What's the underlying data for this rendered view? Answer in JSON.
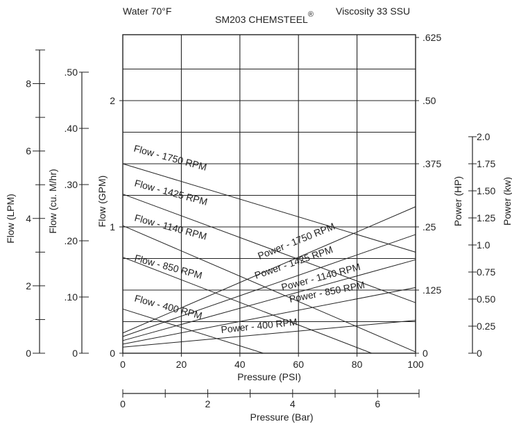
{
  "header": {
    "left": "Water 70°F",
    "center": "SM203 CHEMSTEEL",
    "center_mark": "®",
    "right": "Viscosity 33 SSU"
  },
  "chart_data": {
    "type": "line",
    "grid": true,
    "x": {
      "label": "Pressure (PSI)",
      "range": [
        0,
        100
      ],
      "ticks": [
        0,
        20,
        40,
        60,
        80,
        100
      ],
      "tick_labels": [
        "0",
        "20",
        "40",
        "60",
        "80",
        "100"
      ]
    },
    "x_secondary": {
      "label": "Pressure (Bar)",
      "range": [
        0,
        6.895
      ],
      "ticks": [
        0,
        1,
        2,
        3,
        4,
        5,
        6
      ],
      "tick_labels": [
        "0",
        "",
        "2",
        "",
        "4",
        "",
        "6"
      ]
    },
    "flow_axes": [
      {
        "label": "Flow (GPM)",
        "range": [
          0,
          2.5
        ],
        "ticks": [
          0,
          1,
          2
        ],
        "tick_labels": [
          "0",
          "1",
          "2"
        ]
      },
      {
        "label": "Flow (cu. M/hr)",
        "range": [
          0,
          0.568
        ],
        "ticks": [
          0,
          0.1,
          0.2,
          0.3,
          0.4,
          0.5
        ],
        "tick_labels": [
          "0",
          ".10",
          ".20",
          ".30",
          ".40",
          ".50"
        ]
      },
      {
        "label": "Flow (LPM)",
        "range": [
          0,
          9.46
        ],
        "ticks": [
          0,
          1,
          2,
          3,
          4,
          5,
          6,
          7,
          8,
          9
        ],
        "tick_labels": [
          "0",
          "",
          "2",
          "",
          "4",
          "",
          "6",
          "",
          "8",
          ""
        ]
      }
    ],
    "power_axes": [
      {
        "label": "Power (HP)",
        "range": [
          0,
          0.625
        ],
        "ticks": [
          0,
          0.125,
          0.25,
          0.375,
          0.5,
          0.625
        ],
        "tick_labels": [
          "0",
          ".125",
          ".25",
          ".375",
          ".50",
          ".625"
        ]
      },
      {
        "label": "Power (kw)",
        "range": [
          0,
          2.0
        ],
        "ticks": [
          0,
          0.25,
          0.5,
          0.75,
          1.0,
          1.25,
          1.5,
          1.75,
          2.0
        ],
        "tick_labels": [
          "0",
          "0.25",
          "0.50",
          "0.75",
          "1.0",
          "1.25",
          "1.50",
          "1.75",
          "2.0"
        ]
      }
    ],
    "flow_series": [
      {
        "name": "Flow - 1750 RPM",
        "x": [
          0,
          100
        ],
        "y": [
          1.5,
          0.8
        ]
      },
      {
        "name": "Flow - 1425 RPM",
        "x": [
          0,
          100
        ],
        "y": [
          1.26,
          0.4
        ]
      },
      {
        "name": "Flow - 1140 RPM",
        "x": [
          0,
          100
        ],
        "y": [
          1.01,
          0.01
        ]
      },
      {
        "name": "Flow - 850 RPM",
        "x": [
          0,
          85
        ],
        "y": [
          0.76,
          0.0
        ]
      },
      {
        "name": "Flow - 400 RPM",
        "x": [
          0,
          48
        ],
        "y": [
          0.35,
          0.0
        ]
      }
    ],
    "power_series": [
      {
        "name": "Power - 1750 RPM",
        "x": [
          0,
          100
        ],
        "y": [
          0.04,
          0.29
        ]
      },
      {
        "name": "Power - 1425 RPM",
        "x": [
          0,
          100
        ],
        "y": [
          0.033,
          0.235
        ]
      },
      {
        "name": "Power - 1140 RPM",
        "x": [
          0,
          100
        ],
        "y": [
          0.025,
          0.185
        ]
      },
      {
        "name": "Power - 850 RPM",
        "x": [
          0,
          100
        ],
        "y": [
          0.018,
          0.13
        ]
      },
      {
        "name": "Power - 400 RPM",
        "x": [
          0,
          100
        ],
        "y": [
          0.012,
          0.065
        ]
      }
    ]
  }
}
